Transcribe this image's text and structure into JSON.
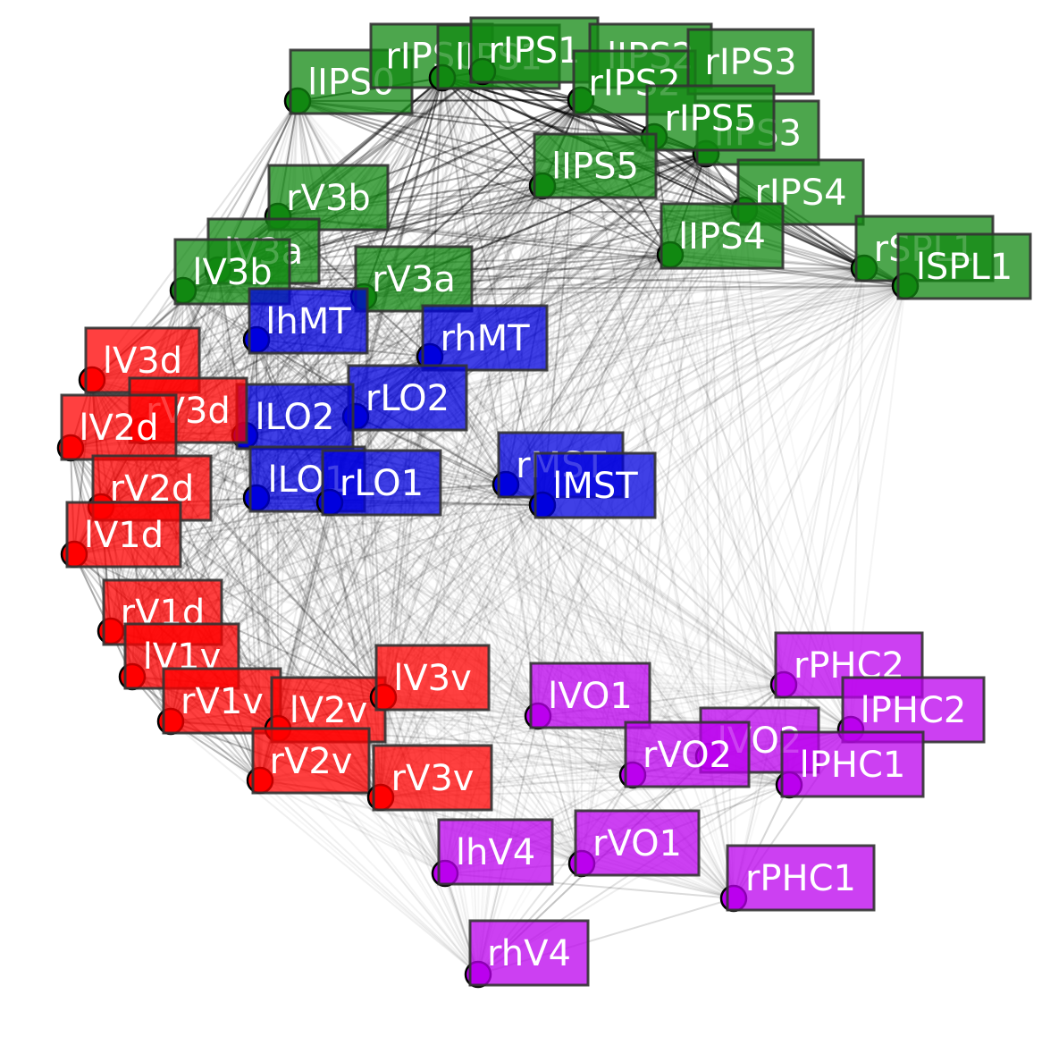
{
  "groups": {
    "red": {
      "color": "#ff0000"
    },
    "blue": {
      "color": "#0000dd"
    },
    "green": {
      "color": "#118811"
    },
    "purple": {
      "color": "#bb00ee"
    }
  },
  "nodes": [
    {
      "id": "lIPS0",
      "label": "lIPS0",
      "group": "green"
    },
    {
      "id": "rIPS0",
      "label": "rIPS0",
      "group": "green"
    },
    {
      "id": "lIPS1",
      "label": "lIPS1",
      "group": "green"
    },
    {
      "id": "rIPS1",
      "label": "rIPS1",
      "group": "green"
    },
    {
      "id": "lIPS2",
      "label": "lIPS2",
      "group": "green"
    },
    {
      "id": "rIPS2",
      "label": "rIPS2",
      "group": "green"
    },
    {
      "id": "rIPS3",
      "label": "rIPS3",
      "group": "green"
    },
    {
      "id": "lIPS3",
      "label": "lIPS3",
      "group": "green"
    },
    {
      "id": "rIPS5",
      "label": "rIPS5",
      "group": "green"
    },
    {
      "id": "lIPS5",
      "label": "lIPS5",
      "group": "green"
    },
    {
      "id": "rIPS4",
      "label": "rIPS4",
      "group": "green"
    },
    {
      "id": "lIPS4",
      "label": "lIPS4",
      "group": "green"
    },
    {
      "id": "rSPL1",
      "label": "rSPL1",
      "group": "green"
    },
    {
      "id": "lSPL1",
      "label": "lSPL1",
      "group": "green"
    },
    {
      "id": "rV3b",
      "label": "rV3b",
      "group": "green"
    },
    {
      "id": "lV3a",
      "label": "lV3a",
      "group": "green"
    },
    {
      "id": "lV3b",
      "label": "lV3b",
      "group": "green"
    },
    {
      "id": "rV3a",
      "label": "rV3a",
      "group": "green"
    },
    {
      "id": "lhMT",
      "label": "lhMT",
      "group": "blue"
    },
    {
      "id": "rhMT",
      "label": "rhMT",
      "group": "blue"
    },
    {
      "id": "rLO2",
      "label": "rLO2",
      "group": "blue"
    },
    {
      "id": "lLO2",
      "label": "lLO2",
      "group": "blue"
    },
    {
      "id": "lLO1",
      "label": "lLO1",
      "group": "blue"
    },
    {
      "id": "rLO1",
      "label": "rLO1",
      "group": "blue"
    },
    {
      "id": "rMST",
      "label": "rMST",
      "group": "blue"
    },
    {
      "id": "lMST",
      "label": "lMST",
      "group": "blue"
    },
    {
      "id": "lV3d",
      "label": "lV3d",
      "group": "red"
    },
    {
      "id": "rV3d",
      "label": "rV3d",
      "group": "red"
    },
    {
      "id": "lV2d",
      "label": "lV2d",
      "group": "red"
    },
    {
      "id": "rV2d",
      "label": "rV2d",
      "group": "red"
    },
    {
      "id": "lV1d",
      "label": "lV1d",
      "group": "red"
    },
    {
      "id": "rV1d",
      "label": "rV1d",
      "group": "red"
    },
    {
      "id": "lV1v",
      "label": "lV1v",
      "group": "red"
    },
    {
      "id": "rV1v",
      "label": "rV1v",
      "group": "red"
    },
    {
      "id": "lV2v",
      "label": "lV2v",
      "group": "red"
    },
    {
      "id": "lV3v",
      "label": "lV3v",
      "group": "red"
    },
    {
      "id": "rV2v",
      "label": "rV2v",
      "group": "red"
    },
    {
      "id": "rV3v",
      "label": "rV3v",
      "group": "red"
    },
    {
      "id": "rPHC2",
      "label": "rPHC2",
      "group": "purple"
    },
    {
      "id": "lPHC2",
      "label": "lPHC2",
      "group": "purple"
    },
    {
      "id": "lVO1",
      "label": "lVO1",
      "group": "purple"
    },
    {
      "id": "lVO2",
      "label": "lVO2",
      "group": "purple"
    },
    {
      "id": "rVO2",
      "label": "rVO2",
      "group": "purple"
    },
    {
      "id": "lPHC1",
      "label": "lPHC1",
      "group": "purple"
    },
    {
      "id": "lhV4",
      "label": "lhV4",
      "group": "purple"
    },
    {
      "id": "rVO1",
      "label": "rVO1",
      "group": "purple"
    },
    {
      "id": "rPHC1",
      "label": "rPHC1",
      "group": "purple"
    },
    {
      "id": "rhV4",
      "label": "rhV4",
      "group": "purple"
    }
  ]
}
